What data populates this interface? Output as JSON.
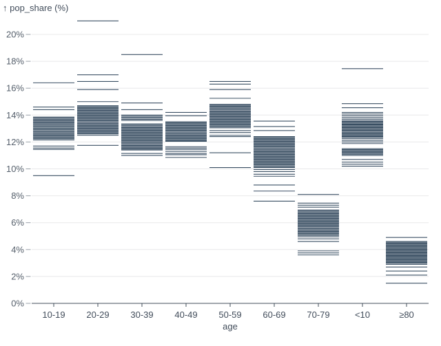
{
  "chart_data": {
    "type": "tick",
    "title": "",
    "ylabel": "pop_share (%)",
    "ylabel_display": "↑ pop_share (%)",
    "xlabel": "age",
    "ylim": [
      0,
      20
    ],
    "ytick_step": 2,
    "ytick_suffix": "%",
    "grid": true,
    "legend": "none",
    "categories": [
      "10-19",
      "20-29",
      "30-39",
      "40-49",
      "50-59",
      "60-69",
      "70-79",
      "<10",
      "≥80"
    ],
    "colors": {
      "tick": "#3a4f63",
      "gridline": "#e8e8ea",
      "axis": "#414c5a",
      "x_label": "#414c5a",
      "y_label": "#555f6b",
      "y_tick_mark": "#99a0a8",
      "background": "#ffffff"
    },
    "series": [
      {
        "name": "10-19",
        "values": [
          16.4,
          14.6,
          14.4,
          13.85,
          13.78,
          13.7,
          13.63,
          13.56,
          13.48,
          13.41,
          13.34,
          13.26,
          13.19,
          13.12,
          13.04,
          12.97,
          12.9,
          12.82,
          12.75,
          12.68,
          12.6,
          12.53,
          12.46,
          12.38,
          12.31,
          12.24,
          12.15,
          11.7,
          11.55,
          11.45,
          9.5
        ]
      },
      {
        "name": "20-29",
        "values": [
          21.0,
          17.0,
          16.5,
          15.9,
          15.0,
          14.7,
          14.63,
          14.56,
          14.49,
          14.42,
          14.35,
          14.28,
          14.21,
          14.14,
          14.07,
          14.0,
          13.93,
          13.86,
          13.79,
          13.72,
          13.65,
          13.58,
          13.51,
          13.44,
          13.37,
          13.3,
          13.23,
          13.16,
          13.09,
          13.02,
          12.95,
          12.88,
          12.81,
          12.74,
          12.67,
          12.6,
          12.5,
          11.75
        ]
      },
      {
        "name": "30-39",
        "values": [
          18.5,
          14.9,
          14.4,
          14.0,
          13.92,
          13.84,
          13.76,
          13.68,
          13.6,
          13.35,
          13.28,
          13.21,
          13.14,
          13.07,
          13.0,
          12.93,
          12.86,
          12.79,
          12.72,
          12.65,
          12.58,
          12.51,
          12.44,
          12.37,
          12.3,
          12.23,
          12.16,
          12.09,
          12.02,
          11.95,
          11.88,
          11.81,
          11.74,
          11.67,
          11.6,
          11.53,
          11.46,
          11.4,
          11.15,
          11.0
        ]
      },
      {
        "name": "40-49",
        "values": [
          14.2,
          13.95,
          13.5,
          13.43,
          13.36,
          13.29,
          13.22,
          13.15,
          13.08,
          13.01,
          12.94,
          12.87,
          12.8,
          12.73,
          12.66,
          12.59,
          12.52,
          12.45,
          12.38,
          12.31,
          12.24,
          12.17,
          12.1,
          12.05,
          11.65,
          11.55,
          11.45,
          11.3,
          11.15,
          11.05,
          10.85
        ]
      },
      {
        "name": "50-59",
        "values": [
          16.5,
          16.3,
          15.9,
          15.25,
          14.8,
          14.73,
          14.66,
          14.59,
          14.52,
          14.45,
          14.38,
          14.31,
          14.24,
          14.17,
          14.1,
          14.03,
          13.96,
          13.89,
          13.82,
          13.75,
          13.68,
          13.61,
          13.54,
          13.47,
          13.4,
          13.33,
          13.26,
          13.19,
          13.12,
          13.05,
          12.85,
          12.7,
          12.5,
          12.4,
          11.2,
          10.1
        ]
      },
      {
        "name": "60-69",
        "values": [
          13.55,
          13.15,
          12.85,
          12.4,
          12.33,
          12.26,
          12.19,
          12.12,
          12.05,
          11.98,
          11.91,
          11.84,
          11.77,
          11.7,
          11.63,
          11.56,
          11.49,
          11.42,
          11.35,
          11.28,
          11.21,
          11.14,
          11.07,
          11.0,
          10.93,
          10.86,
          10.79,
          10.72,
          10.65,
          10.58,
          10.51,
          10.44,
          10.37,
          10.3,
          10.23,
          10.16,
          10.1,
          9.95,
          9.8,
          9.6,
          9.45,
          8.8,
          8.35,
          7.6
        ]
      },
      {
        "name": "70-79",
        "values": [
          8.1,
          7.45,
          7.3,
          7.15,
          6.95,
          6.88,
          6.81,
          6.74,
          6.67,
          6.6,
          6.53,
          6.46,
          6.39,
          6.32,
          6.25,
          6.18,
          6.11,
          6.04,
          5.97,
          5.9,
          5.83,
          5.76,
          5.69,
          5.62,
          5.55,
          5.48,
          5.41,
          5.34,
          5.27,
          5.2,
          5.13,
          5.05,
          4.95,
          4.8,
          4.6,
          3.9,
          3.75,
          3.6
        ]
      },
      {
        "name": "<10",
        "values": [
          17.45,
          14.85,
          14.55,
          14.2,
          14.08,
          13.95,
          13.82,
          13.7,
          13.6,
          13.53,
          13.47,
          13.4,
          13.33,
          13.27,
          13.2,
          13.13,
          13.07,
          13.0,
          12.93,
          12.87,
          12.8,
          12.73,
          12.67,
          12.6,
          12.53,
          12.47,
          12.4,
          12.35,
          12.25,
          12.12,
          12.0,
          11.88,
          11.5,
          11.43,
          11.36,
          11.29,
          11.22,
          11.15,
          11.08,
          11.0,
          10.7,
          10.5,
          10.35,
          10.2
        ]
      },
      {
        "name": "≥80",
        "values": [
          4.9,
          4.6,
          4.54,
          4.47,
          4.41,
          4.34,
          4.28,
          4.21,
          4.15,
          4.08,
          4.02,
          3.95,
          3.89,
          3.82,
          3.76,
          3.69,
          3.63,
          3.56,
          3.5,
          3.43,
          3.37,
          3.3,
          3.24,
          3.17,
          3.11,
          3.04,
          2.98,
          2.9,
          2.7,
          2.4,
          2.1,
          1.5
        ]
      }
    ]
  }
}
